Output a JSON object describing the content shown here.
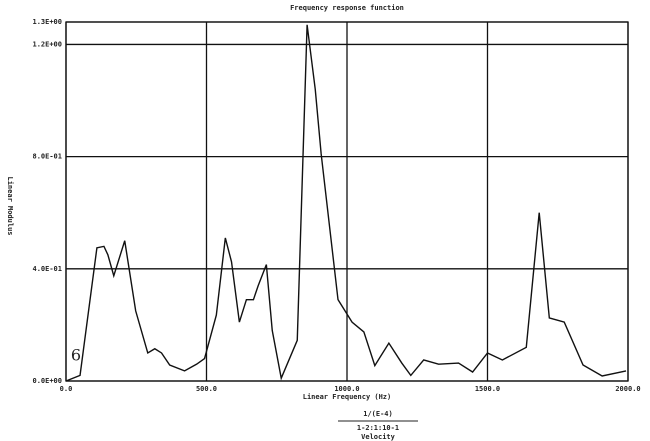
{
  "chart_data": {
    "type": "line",
    "title": "Frequency response function",
    "x_label": "Linear Frequency (Hz)",
    "y_label": "Linear Modulus",
    "annotations": [
      "1/(E-4)",
      "1-2:1:10-1",
      "Velocity",
      "6"
    ],
    "x": [
      0,
      50,
      110,
      135,
      149,
      170,
      209,
      248,
      291,
      316,
      340,
      369,
      422,
      465,
      493,
      535,
      567,
      589,
      617,
      642,
      667,
      684,
      713,
      734,
      766,
      823,
      858,
      887,
      908,
      968,
      1018,
      1060,
      1099,
      1149,
      1195,
      1227,
      1273,
      1326,
      1397,
      1447,
      1500,
      1553,
      1638,
      1684,
      1720,
      1773,
      1840,
      1908,
      1993
    ],
    "series": [
      {
        "name": "Linear Modulus",
        "color": "#111111",
        "values": [
          0,
          0.02,
          0.475,
          0.48,
          0.45,
          0.375,
          0.5,
          0.25,
          0.1,
          0.115,
          0.1,
          0.057,
          0.036,
          0.06,
          0.08,
          0.235,
          0.51,
          0.425,
          0.21,
          0.29,
          0.29,
          0.34,
          0.415,
          0.18,
          0.01,
          0.145,
          1.27,
          1.04,
          0.81,
          0.29,
          0.21,
          0.175,
          0.055,
          0.135,
          0.064,
          0.02,
          0.075,
          0.06,
          0.064,
          0.032,
          0.1,
          0.075,
          0.12,
          0.6,
          0.225,
          0.21,
          0.057,
          0.018,
          0.036
        ]
      }
    ],
    "xlim": [
      0,
      2000
    ],
    "xticks": [
      {
        "value": 0,
        "label": "0.0"
      },
      {
        "value": 500,
        "label": "500.0"
      },
      {
        "value": 1000,
        "label": "1000.0"
      },
      {
        "value": 1500,
        "label": "1500.0"
      },
      {
        "value": 2000,
        "label": "2000.0"
      }
    ],
    "ylim": [
      0,
      1.28
    ],
    "yticks": [
      {
        "value": 0,
        "label": "0.0E+00"
      },
      {
        "value": 0.4,
        "label": "4.0E-01"
      },
      {
        "value": 0.8,
        "label": "8.0E-01"
      },
      {
        "value": 1.2,
        "label": "1.2E+00"
      },
      {
        "value": 1.28,
        "label": "1.3E+00"
      }
    ],
    "grid": true
  }
}
